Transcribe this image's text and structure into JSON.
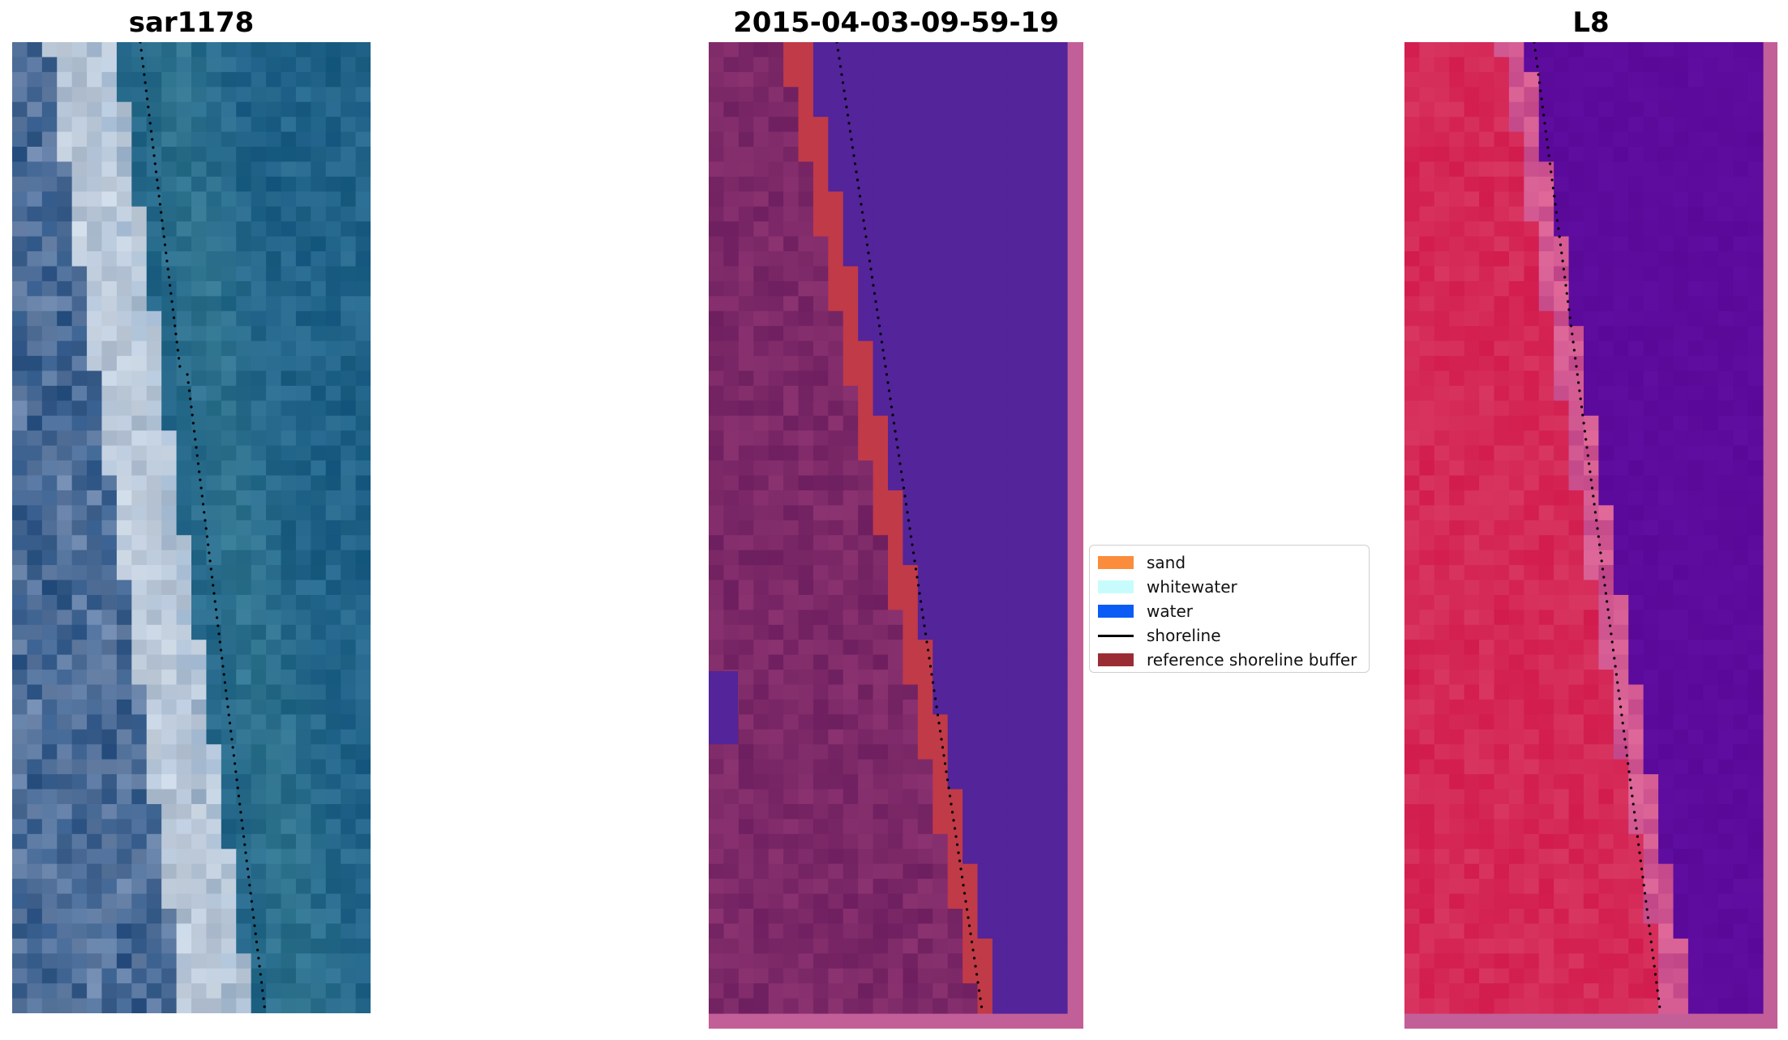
{
  "panels": [
    {
      "id": "rgb",
      "title": "sar1178"
    },
    {
      "id": "classified",
      "title": "2015-04-03-09-59-19"
    },
    {
      "id": "index",
      "title": "L8"
    }
  ],
  "legend": {
    "items": [
      {
        "label": "sand",
        "kind": "patch",
        "color": "#fb8c3c"
      },
      {
        "label": "whitewater",
        "kind": "patch",
        "color": "#c8fcfc"
      },
      {
        "label": "water",
        "kind": "patch",
        "color": "#0a5cf5"
      },
      {
        "label": "shoreline",
        "kind": "line",
        "color": "#000000"
      },
      {
        "label": "reference shoreline buffer",
        "kind": "patch",
        "color": "#9a2d34"
      }
    ]
  },
  "colors": {
    "rgb_land_dark": "#2d5585",
    "rgb_beach": "#c8d3e0",
    "rgb_water": "#1f6188",
    "class_land": "#6e1f5f",
    "class_water": "#53249a",
    "class_buffer": "#c13a48",
    "class_border": "#c35f98",
    "index_land": "#d21c4d",
    "index_water": "#5a0898",
    "index_border": "#c35f98"
  }
}
